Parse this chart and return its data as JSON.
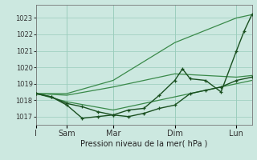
{
  "background_color": "#cce8e0",
  "grid_color": "#99ccbb",
  "line_color_light": "#3a8a4a",
  "line_color_dark": "#1a5020",
  "xlabel": "Pression niveau de la mer( hPa )",
  "ylim": [
    1016.5,
    1023.8
  ],
  "yticks": [
    1017,
    1018,
    1019,
    1020,
    1021,
    1022,
    1023
  ],
  "xlim": [
    0,
    14
  ],
  "xtick_positions": [
    0,
    2,
    5,
    9,
    13
  ],
  "xtick_labels": [
    "I",
    "Sam",
    "Mar",
    "Dim",
    "Lun"
  ],
  "vlines": [
    0,
    2,
    5,
    9,
    13
  ],
  "envelope_upper": {
    "x": [
      0,
      2,
      5,
      9,
      13,
      14
    ],
    "y": [
      1018.4,
      1018.4,
      1019.2,
      1021.5,
      1023.0,
      1023.2
    ]
  },
  "envelope_mid": {
    "x": [
      0,
      2,
      5,
      9,
      13,
      14
    ],
    "y": [
      1018.4,
      1018.3,
      1018.8,
      1019.6,
      1019.4,
      1019.5
    ]
  },
  "envelope_lower": {
    "x": [
      0,
      2,
      5,
      9,
      13,
      14
    ],
    "y": [
      1018.4,
      1017.9,
      1017.4,
      1018.2,
      1019.0,
      1019.2
    ]
  },
  "line1_x": [
    0,
    1,
    2,
    3,
    4,
    5,
    6,
    7,
    8,
    9,
    9.5,
    10,
    11,
    12,
    13,
    13.5,
    14
  ],
  "line1_y": [
    1018.4,
    1018.2,
    1017.7,
    1016.9,
    1017.0,
    1017.1,
    1017.4,
    1017.5,
    1018.3,
    1019.2,
    1019.9,
    1019.3,
    1019.2,
    1018.5,
    1021.0,
    1022.2,
    1023.2
  ],
  "line2_x": [
    0,
    1,
    2,
    3,
    4,
    5,
    6,
    7,
    8,
    9,
    10,
    11,
    12,
    13,
    14
  ],
  "line2_y": [
    1018.4,
    1018.2,
    1017.8,
    1017.6,
    1017.3,
    1017.1,
    1017.0,
    1017.2,
    1017.5,
    1017.7,
    1018.4,
    1018.6,
    1018.8,
    1019.2,
    1019.4
  ]
}
